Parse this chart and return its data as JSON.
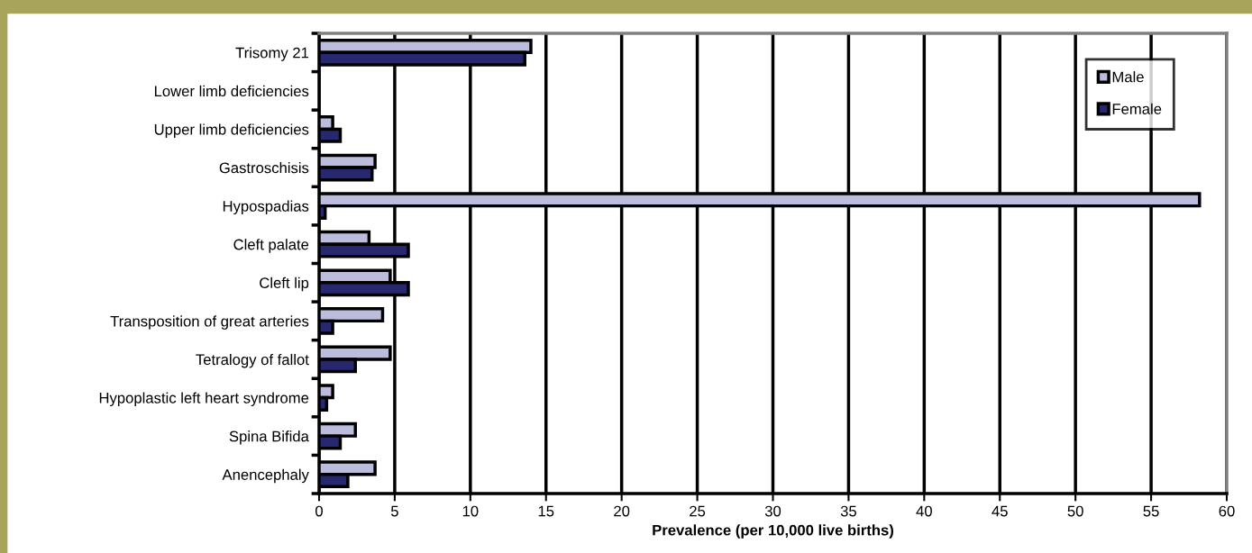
{
  "chart_data": {
    "type": "bar",
    "orientation": "horizontal",
    "xlabel": "Prevalence (per 10,000 live births)",
    "categories": [
      "Trisomy 21",
      "Lower limb deficiencies",
      "Upper limb deficiencies",
      "Gastroschisis",
      "Hypospadias",
      "Cleft palate",
      "Cleft lip",
      "Transposition of great arteries",
      "Tetralogy of fallot",
      "Hypoplastic left heart syndrome",
      "Spina Bifida",
      "Anencephaly"
    ],
    "series": [
      {
        "name": "Male",
        "color": "#bcbcdc",
        "values": [
          14.0,
          null,
          0.9,
          3.7,
          58.2,
          3.3,
          4.7,
          4.2,
          4.7,
          0.9,
          2.4,
          3.7
        ]
      },
      {
        "name": "Female",
        "color": "#282870",
        "values": [
          13.6,
          null,
          1.4,
          3.5,
          0.4,
          5.9,
          5.9,
          0.9,
          2.4,
          0.5,
          1.4,
          1.9
        ]
      }
    ],
    "xlim": [
      0,
      60
    ],
    "xticks": [
      0,
      5,
      10,
      15,
      20,
      25,
      30,
      35,
      40,
      45,
      50,
      55,
      60
    ],
    "grid": "x",
    "legend": "top right"
  }
}
